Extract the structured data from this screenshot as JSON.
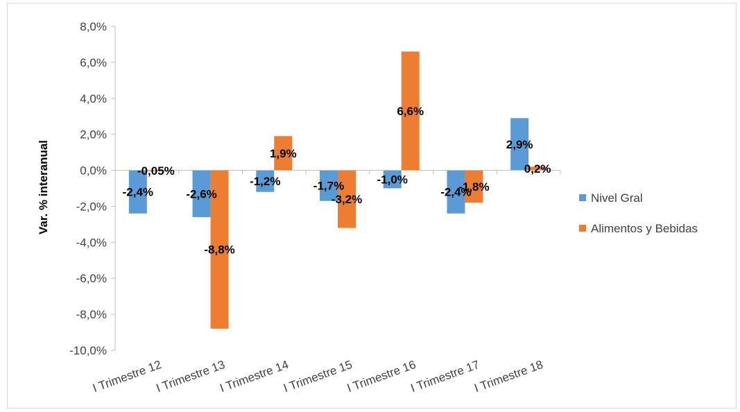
{
  "chart_data": {
    "type": "bar",
    "categories": [
      "I Trimestre 12",
      "I Trimestre 13",
      "I Trimestre 14",
      "I Trimestre 15",
      "I Trimestre 16",
      "I Trimestre 17",
      "I Trimestre 18"
    ],
    "series": [
      {
        "name": "Nivel Gral",
        "color": "#5b9bd5",
        "values": [
          -2.4,
          -2.6,
          -1.2,
          -1.7,
          -1.0,
          -2.4,
          2.9
        ],
        "labels": [
          "-2,4%",
          "-2,6%",
          "-1,2%",
          "-1,7%",
          "-1,0%",
          "-2,4%",
          "2,9%"
        ]
      },
      {
        "name": "Alimentos y Bebidas",
        "color": "#ed7d31",
        "values": [
          -0.05,
          -8.8,
          1.9,
          -3.2,
          6.6,
          -1.8,
          0.2
        ],
        "labels": [
          "-0,05%",
          "-8,8%",
          "1,9%",
          "-3,2%",
          "6,6%",
          "-1,8%",
          "0,2%"
        ]
      }
    ],
    "ylabel": "Var. % interanual",
    "ylim": [
      -10,
      8
    ],
    "yticks": [
      8,
      6,
      4,
      2,
      0,
      -2,
      -4,
      -6,
      -8,
      -10
    ],
    "ytick_labels": [
      "8,0%",
      "6,0%",
      "4,0%",
      "2,0%",
      "0,0%",
      "-2,0%",
      "-4,0%",
      "-6,0%",
      "-8,0%",
      "-10,0%"
    ],
    "legend_position": "right",
    "grid": false
  }
}
